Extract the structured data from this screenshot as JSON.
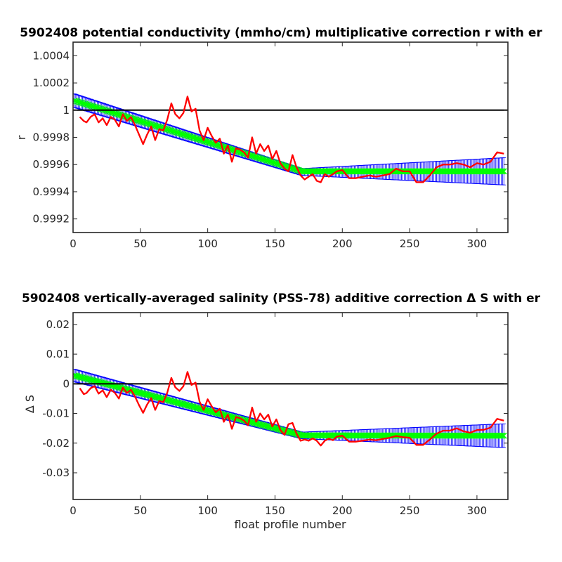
{
  "chart_data": [
    {
      "type": "line",
      "title": "5902408 potential conductivity (mmho/cm) multiplicative correction r with er",
      "xlabel": "",
      "ylabel": "r",
      "xlim": [
        0,
        323
      ],
      "ylim": [
        0.9991,
        1.0005
      ],
      "xticks": [
        0,
        50,
        100,
        150,
        200,
        250,
        300
      ],
      "xtick_labels": [
        "0",
        "50",
        "100",
        "150",
        "200",
        "250",
        "300"
      ],
      "yticks": [
        0.9992,
        0.9994,
        0.9996,
        0.9998,
        1,
        1.0002,
        1.0004
      ],
      "ytick_labels": [
        "0.9992",
        "0.9994",
        "0.9996",
        "0.9998",
        "1",
        "1.0002",
        "1.0004"
      ],
      "grid": false,
      "reference_line": 1,
      "series": [
        {
          "role": "error-band",
          "color": "#0000ff",
          "x": [
            1,
            170,
            320
          ],
          "upper": [
            1.00012,
            0.99957,
            0.99965
          ],
          "lower": [
            1.00002,
            0.99952,
            0.99945
          ]
        },
        {
          "role": "fit",
          "color": "#00ff00",
          "x": [
            1,
            170,
            320
          ],
          "y": [
            1.00007,
            0.99955,
            0.99955
          ]
        },
        {
          "role": "estimate",
          "color": "#ff0000",
          "x": [
            5,
            8,
            10,
            13,
            16,
            19,
            22,
            25,
            28,
            31,
            34,
            37,
            40,
            43,
            46,
            49,
            52,
            55,
            58,
            61,
            64,
            67,
            70,
            73,
            76,
            79,
            82,
            85,
            88,
            91,
            94,
            97,
            100,
            103,
            106,
            109,
            112,
            115,
            118,
            121,
            124,
            127,
            130,
            133,
            136,
            139,
            142,
            145,
            148,
            151,
            154,
            157,
            160,
            163,
            166,
            169,
            172,
            175,
            178,
            181,
            184,
            187,
            190,
            193,
            196,
            200,
            205,
            210,
            215,
            220,
            225,
            230,
            235,
            240,
            245,
            250,
            255,
            260,
            265,
            270,
            275,
            280,
            285,
            290,
            295,
            300,
            305,
            310,
            315,
            320
          ],
          "y": [
            0.99995,
            0.99992,
            0.99991,
            0.99995,
            0.99997,
            0.99991,
            0.99994,
            0.99989,
            0.99995,
            0.99993,
            0.99988,
            0.99997,
            0.99992,
            0.99995,
            0.99989,
            0.99982,
            0.99975,
            0.99982,
            0.99988,
            0.99978,
            0.99986,
            0.99985,
            0.99993,
            1.00005,
            0.99997,
            0.99994,
            0.99998,
            1.0001,
            0.99999,
            1.00001,
            0.99985,
            0.99978,
            0.99987,
            0.99981,
            0.99976,
            0.99979,
            0.99968,
            0.99974,
            0.99962,
            0.99972,
            0.99971,
            0.99969,
            0.99965,
            0.9998,
            0.99968,
            0.99975,
            0.9997,
            0.99974,
            0.99964,
            0.9997,
            0.99961,
            0.99957,
            0.99955,
            0.99967,
            0.99958,
            0.99952,
            0.99949,
            0.99951,
            0.99953,
            0.99948,
            0.99947,
            0.99953,
            0.99951,
            0.99953,
            0.99955,
            0.99956,
            0.9995,
            0.9995,
            0.99951,
            0.99952,
            0.99951,
            0.99952,
            0.99953,
            0.99957,
            0.99955,
            0.99955,
            0.99947,
            0.99947,
            0.99952,
            0.99958,
            0.9996,
            0.9996,
            0.99961,
            0.9996,
            0.99958,
            0.99961,
            0.9996,
            0.99962,
            0.99969,
            0.99968
          ]
        }
      ]
    },
    {
      "type": "line",
      "title": "5902408 vertically-averaged salinity (PSS-78) additive correction Δ S with er",
      "xlabel": "float profile number",
      "ylabel": "Δ S",
      "xlim": [
        0,
        323
      ],
      "ylim": [
        -0.039,
        0.024
      ],
      "xticks": [
        0,
        50,
        100,
        150,
        200,
        250,
        300
      ],
      "xtick_labels": [
        "0",
        "50",
        "100",
        "150",
        "200",
        "250",
        "300"
      ],
      "yticks": [
        -0.03,
        -0.02,
        -0.01,
        0,
        0.01,
        0.02
      ],
      "ytick_labels": [
        "-0.03",
        "-0.02",
        "-0.01",
        "0",
        "0.01",
        "0.02"
      ],
      "grid": false,
      "reference_line": 0,
      "series": [
        {
          "role": "error-band",
          "color": "#0000ff",
          "x": [
            1,
            170,
            320
          ],
          "upper": [
            0.0049,
            -0.0163,
            -0.0135
          ],
          "lower": [
            0.0007,
            -0.0185,
            -0.0215
          ]
        },
        {
          "role": "fit",
          "color": "#00ff00",
          "x": [
            1,
            170,
            320
          ],
          "y": [
            0.0028,
            -0.0174,
            -0.0175
          ]
        },
        {
          "role": "estimate",
          "color": "#ff0000",
          "x": [
            5,
            8,
            10,
            13,
            16,
            19,
            22,
            25,
            28,
            31,
            34,
            37,
            40,
            43,
            46,
            49,
            52,
            55,
            58,
            61,
            64,
            67,
            70,
            73,
            76,
            79,
            82,
            85,
            88,
            91,
            94,
            97,
            100,
            103,
            106,
            109,
            112,
            115,
            118,
            121,
            124,
            127,
            130,
            133,
            136,
            139,
            142,
            145,
            148,
            151,
            154,
            157,
            160,
            163,
            166,
            169,
            172,
            175,
            178,
            181,
            184,
            187,
            190,
            193,
            196,
            200,
            205,
            210,
            215,
            220,
            225,
            230,
            235,
            240,
            245,
            250,
            255,
            260,
            265,
            270,
            275,
            280,
            285,
            290,
            295,
            300,
            305,
            310,
            315,
            320
          ],
          "y": [
            -0.0015,
            -0.0035,
            -0.0031,
            -0.0015,
            -0.0008,
            -0.0033,
            -0.0022,
            -0.0045,
            -0.002,
            -0.003,
            -0.005,
            -0.0013,
            -0.0031,
            -0.002,
            -0.0043,
            -0.0072,
            -0.0098,
            -0.007,
            -0.0048,
            -0.0088,
            -0.0058,
            -0.0062,
            -0.003,
            0.002,
            -0.0012,
            -0.0024,
            -0.0008,
            0.004,
            -0.0004,
            0.0004,
            -0.006,
            -0.0088,
            -0.0052,
            -0.0076,
            -0.0096,
            -0.0084,
            -0.0128,
            -0.0104,
            -0.0152,
            -0.0112,
            -0.0116,
            -0.0124,
            -0.014,
            -0.008,
            -0.0128,
            -0.01,
            -0.012,
            -0.0104,
            -0.0144,
            -0.012,
            -0.0156,
            -0.0172,
            -0.0136,
            -0.0132,
            -0.0168,
            -0.0192,
            -0.0188,
            -0.0192,
            -0.0184,
            -0.0192,
            -0.0208,
            -0.0192,
            -0.0185,
            -0.019,
            -0.0178,
            -0.0175,
            -0.0195,
            -0.0195,
            -0.0192,
            -0.0188,
            -0.019,
            -0.0186,
            -0.0182,
            -0.0176,
            -0.018,
            -0.0182,
            -0.0206,
            -0.0206,
            -0.0188,
            -0.0168,
            -0.0158,
            -0.0158,
            -0.015,
            -0.016,
            -0.0165,
            -0.0156,
            -0.0155,
            -0.0148,
            -0.0118,
            -0.0124
          ]
        }
      ]
    }
  ]
}
